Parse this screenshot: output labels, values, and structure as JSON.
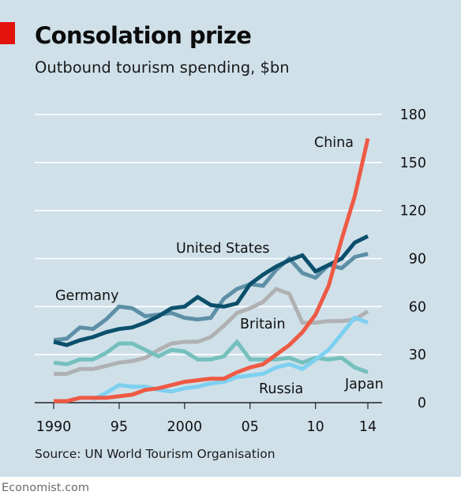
{
  "header": {
    "title": "Consolation prize",
    "subtitle": "Outbound tourism spending, $bn"
  },
  "source": "Source: UN World Tourism Organisation",
  "footer": "Economist.com",
  "colors": {
    "background": "#cfe0e9",
    "accent_tag": "#e3120b",
    "gridline": "#ffffff"
  },
  "chart_data": {
    "type": "line",
    "title": "Consolation prize",
    "subtitle": "Outbound tourism spending, $bn",
    "xlabel": "",
    "ylabel": "",
    "xlim": [
      1990,
      2014
    ],
    "ylim": [
      0,
      180
    ],
    "grid": true,
    "y_axis_side": "right",
    "x_ticks": [
      {
        "value": 1990,
        "label": "1990"
      },
      {
        "value": 1995,
        "label": "95"
      },
      {
        "value": 2000,
        "label": "2000"
      },
      {
        "value": 2005,
        "label": "05"
      },
      {
        "value": 2010,
        "label": "10"
      },
      {
        "value": 2014,
        "label": "14"
      }
    ],
    "y_ticks": [
      0,
      30,
      60,
      90,
      120,
      150,
      180
    ],
    "x": [
      1990,
      1991,
      1992,
      1993,
      1994,
      1995,
      1996,
      1997,
      1998,
      1999,
      2000,
      2001,
      2002,
      2003,
      2004,
      2005,
      2006,
      2007,
      2008,
      2009,
      2010,
      2011,
      2012,
      2013,
      2014
    ],
    "series": [
      {
        "name": "Germany",
        "color": "#5d8fa6",
        "values": [
          39,
          40,
          47,
          46,
          52,
          60,
          59,
          54,
          55,
          56,
          53,
          52,
          53,
          65,
          71,
          74,
          73,
          83,
          90,
          81,
          78,
          86,
          84,
          91,
          93
        ]
      },
      {
        "name": "Britain",
        "color": "#b0b1b3",
        "values": [
          18,
          18,
          21,
          21,
          23,
          25,
          26,
          28,
          33,
          37,
          38,
          38,
          41,
          48,
          56,
          59,
          63,
          71,
          68,
          50,
          50,
          51,
          51,
          52,
          57
        ]
      },
      {
        "name": "Japan",
        "color": "#75c0bd",
        "values": [
          25,
          24,
          27,
          27,
          31,
          37,
          37,
          33,
          29,
          33,
          32,
          27,
          27,
          29,
          38,
          27,
          27,
          27,
          28,
          25,
          28,
          27,
          28,
          22,
          19
        ]
      },
      {
        "name": "United States",
        "color": "#0b4f6c",
        "values": [
          38,
          36,
          39,
          41,
          44,
          46,
          47,
          50,
          54,
          59,
          60,
          66,
          61,
          60,
          62,
          74,
          80,
          85,
          89,
          92,
          82,
          86,
          90,
          100,
          104
        ]
      },
      {
        "name": "Russia",
        "color": "#7dd0f0",
        "values": [
          null,
          null,
          null,
          2,
          6,
          11,
          10,
          10,
          8,
          7,
          9,
          10,
          12,
          13,
          16,
          17,
          18,
          22,
          24,
          21,
          27,
          33,
          43,
          53,
          50
        ]
      },
      {
        "name": "China",
        "color": "#ee5a45",
        "values": [
          1,
          1,
          3,
          3,
          3,
          4,
          5,
          8,
          9,
          11,
          13,
          14,
          15,
          15,
          19,
          22,
          24,
          30,
          36,
          44,
          55,
          73,
          102,
          129,
          165
        ]
      }
    ],
    "labels": {
      "germany": "Germany",
      "britain": "Britain",
      "japan": "Japan",
      "united_states": "United States",
      "russia": "Russia",
      "china": "China"
    }
  }
}
